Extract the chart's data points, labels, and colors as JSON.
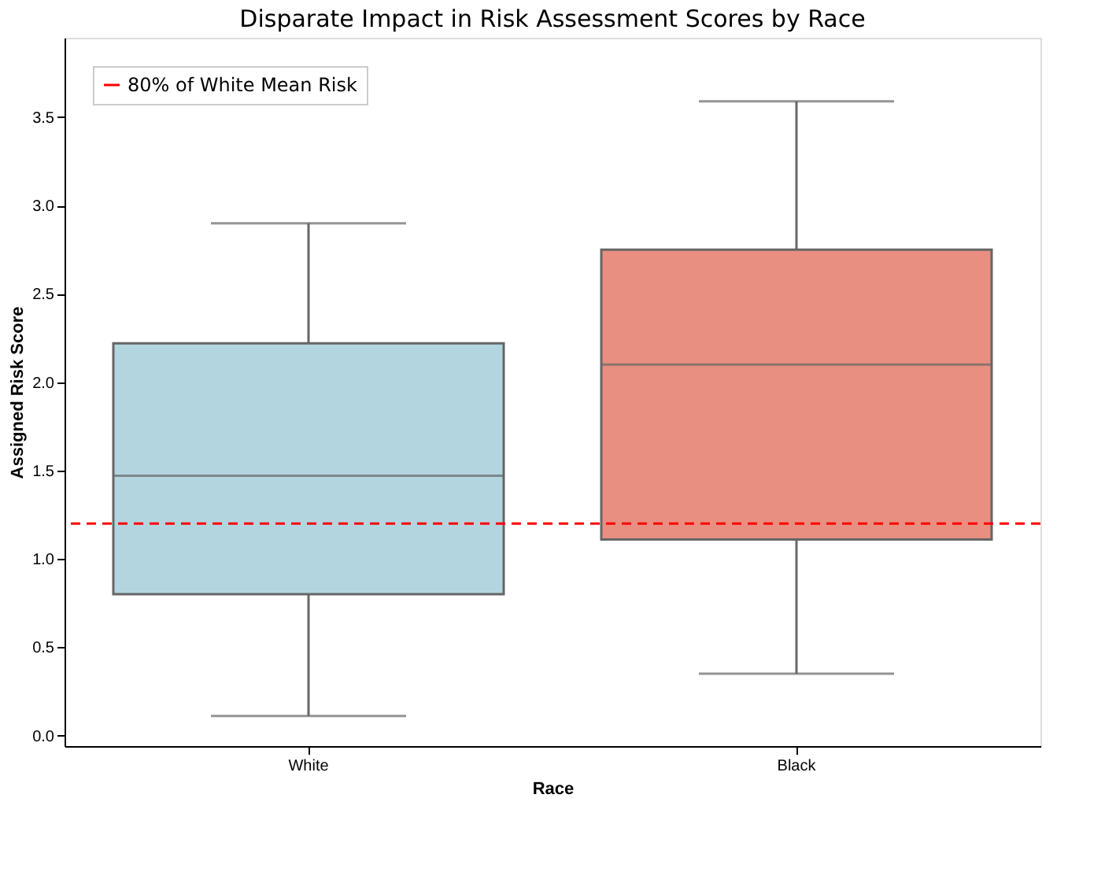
{
  "chart_data": {
    "type": "box",
    "title": "Disparate Impact in Risk Assessment Scores by Race",
    "xlabel": "Race",
    "ylabel": "Assigned Risk Score",
    "categories": [
      "White",
      "Black"
    ],
    "colors": [
      "#b3d5e0",
      "#e88f81"
    ],
    "boxes": [
      {
        "low": 0.11,
        "q1": 0.8,
        "median": 1.47,
        "q3": 2.22,
        "high": 2.9
      },
      {
        "low": 0.35,
        "q1": 1.11,
        "median": 2.1,
        "q3": 2.75,
        "high": 3.59
      }
    ],
    "ref_lines": [
      {
        "axis": "y",
        "value": 1.2,
        "label": "80% of White Mean Risk",
        "color": "#ff0000",
        "line_style": "dashed"
      }
    ],
    "legend": "top left",
    "grid": false,
    "ylim": [
      -0.06,
      3.95
    ],
    "yticks": [
      {
        "value": 0,
        "label": "0.0"
      },
      {
        "value": 0.5,
        "label": "0.5"
      },
      {
        "value": 1,
        "label": "1.0"
      },
      {
        "value": 1.5,
        "label": "1.5"
      },
      {
        "value": 2,
        "label": "2.0"
      },
      {
        "value": 2.5,
        "label": "2.5"
      },
      {
        "value": 3,
        "label": "3.0"
      },
      {
        "value": 3.5,
        "label": "3.5"
      }
    ]
  }
}
